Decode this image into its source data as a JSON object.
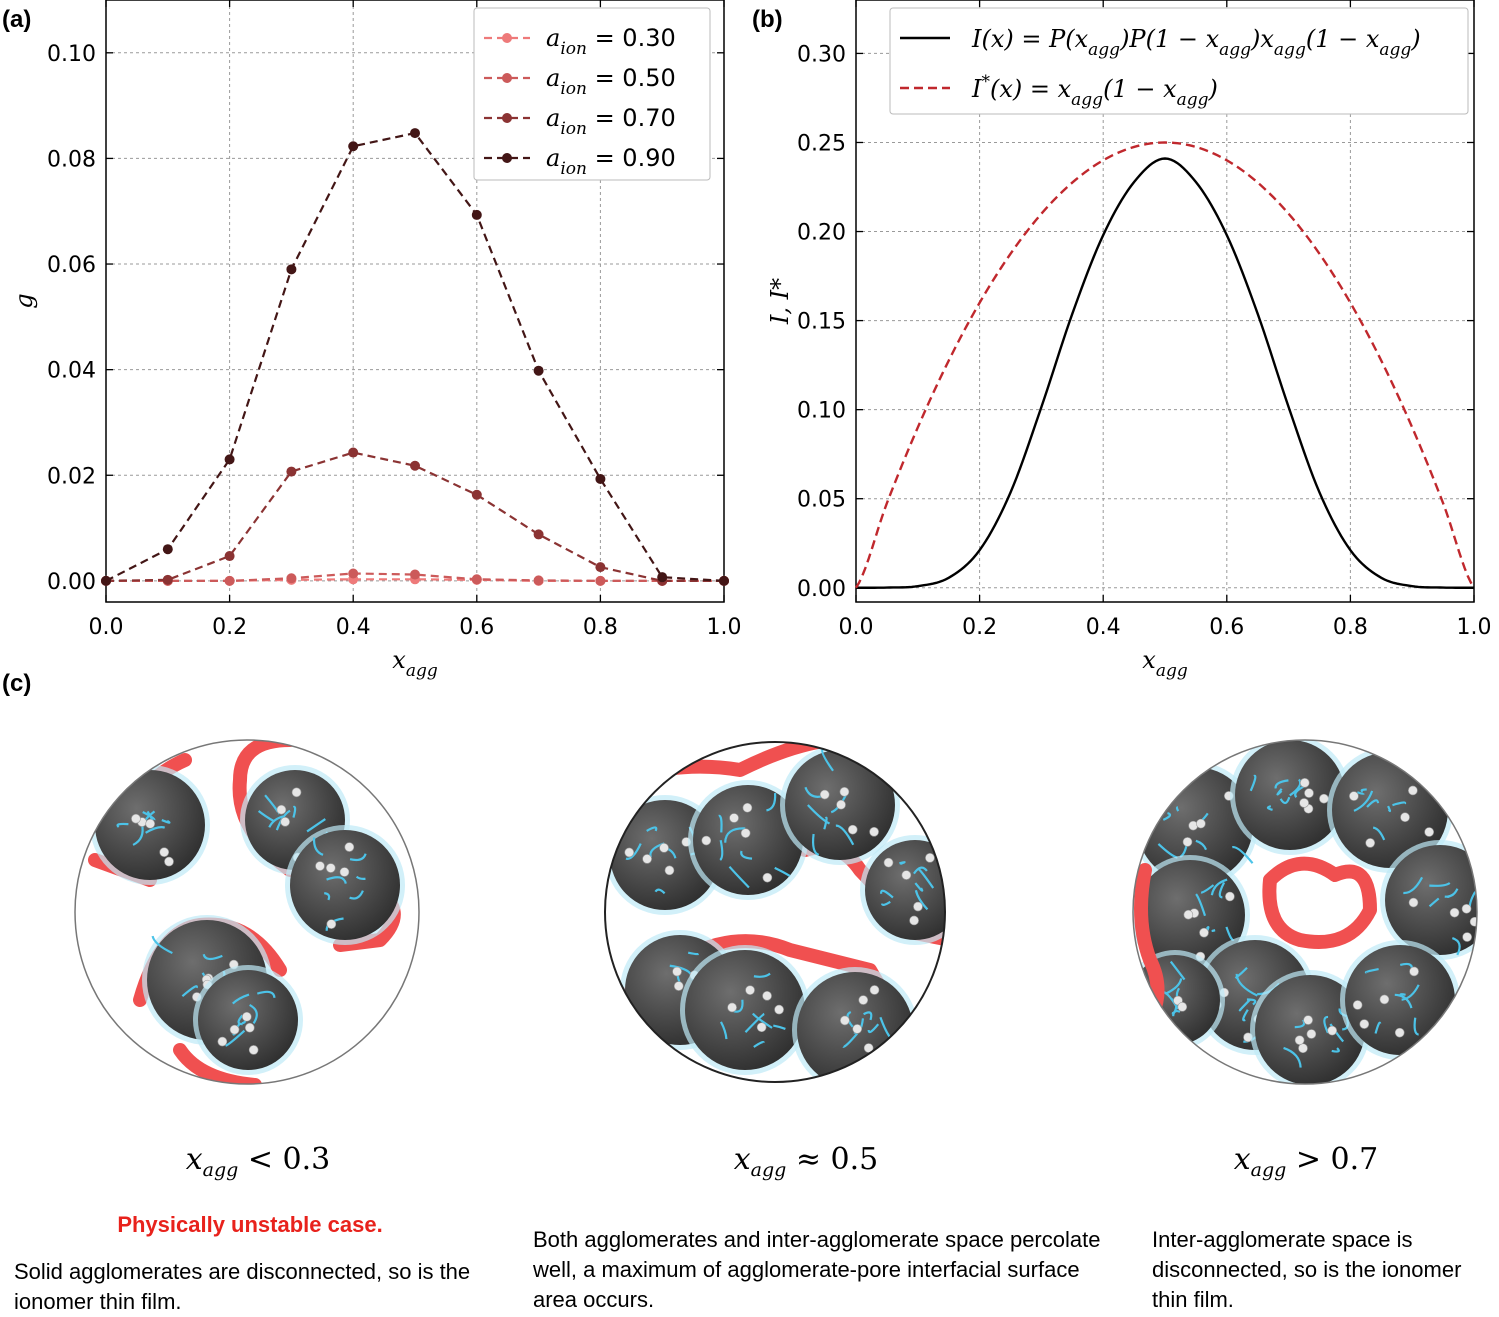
{
  "panels": {
    "a": "(a)",
    "b": "(b)",
    "c": "(c)"
  },
  "chart_data": [
    {
      "type": "line",
      "panel": "(a)",
      "xlabel": "x",
      "xlabel_sub": "agg",
      "ylabel": "g",
      "xlim": [
        0.0,
        1.0
      ],
      "ylim": [
        -0.004,
        0.11
      ],
      "xticks": [
        "0.0",
        "0.2",
        "0.4",
        "0.6",
        "0.8",
        "1.0"
      ],
      "xtick_values": [
        0.0,
        0.2,
        0.4,
        0.6,
        0.8,
        1.0
      ],
      "yticks": [
        "0.00",
        "0.02",
        "0.04",
        "0.06",
        "0.08",
        "0.10"
      ],
      "ytick_values": [
        0.0,
        0.02,
        0.04,
        0.06,
        0.08,
        0.1
      ],
      "grid": true,
      "legend_placement": "top-right",
      "x": [
        0.0,
        0.1,
        0.2,
        0.3,
        0.4,
        0.5,
        0.6,
        0.7,
        0.8,
        0.9,
        1.0
      ],
      "series": [
        {
          "name_sym": "a",
          "name_sub": "ion",
          "name_val": " = 0.30",
          "color": "#ee7a7a",
          "values": [
            0.0,
            0.0,
            0.0,
            0.0002,
            0.0003,
            0.0003,
            0.0002,
            0.0,
            0.0,
            0.0,
            0.0
          ]
        },
        {
          "name_sym": "a",
          "name_sub": "ion",
          "name_val": " = 0.50",
          "color": "#cc5a5a",
          "values": [
            0.0,
            0.0,
            0.0,
            0.0005,
            0.0014,
            0.0012,
            0.0003,
            0.0001,
            0.0,
            0.0,
            0.0
          ]
        },
        {
          "name_sym": "a",
          "name_sub": "ion",
          "name_val": " = 0.70",
          "color": "#8b3333",
          "values": [
            0.0,
            0.0002,
            0.0047,
            0.0207,
            0.0243,
            0.0218,
            0.0163,
            0.0088,
            0.0026,
            0.0,
            0.0
          ]
        },
        {
          "name_sym": "a",
          "name_sub": "ion",
          "name_val": " = 0.90",
          "color": "#431616",
          "values": [
            0.0,
            0.006,
            0.023,
            0.059,
            0.0823,
            0.0848,
            0.0693,
            0.0398,
            0.0193,
            0.0007,
            0.0
          ]
        }
      ]
    },
    {
      "type": "line",
      "panel": "(b)",
      "xlabel": "x",
      "xlabel_sub": "agg",
      "ylabel": "I, I*",
      "xlim": [
        0.0,
        1.0
      ],
      "ylim": [
        -0.008,
        0.33
      ],
      "xticks": [
        "0.0",
        "0.2",
        "0.4",
        "0.6",
        "0.8",
        "1.0"
      ],
      "xtick_values": [
        0.0,
        0.2,
        0.4,
        0.6,
        0.8,
        1.0
      ],
      "yticks": [
        "0.00",
        "0.05",
        "0.10",
        "0.15",
        "0.20",
        "0.25",
        "0.30"
      ],
      "ytick_values": [
        0.0,
        0.05,
        0.1,
        0.15,
        0.2,
        0.25,
        0.3
      ],
      "grid": true,
      "legend_placement": "top",
      "x": [
        0.0,
        0.05,
        0.1,
        0.15,
        0.2,
        0.25,
        0.3,
        0.35,
        0.4,
        0.45,
        0.5,
        0.55,
        0.6,
        0.65,
        0.7,
        0.75,
        0.8,
        0.85,
        0.9,
        0.95,
        1.0
      ],
      "series": [
        {
          "name": "I(x)   = P(x_agg)P(1 − x_agg)x_agg(1 − x_agg)",
          "color": "#000000",
          "style": "solid",
          "values": [
            0.0,
            0.0001,
            0.0009,
            0.0056,
            0.0211,
            0.0535,
            0.1015,
            0.1538,
            0.198,
            0.2278,
            0.241,
            0.2278,
            0.198,
            0.1538,
            0.1015,
            0.0535,
            0.0211,
            0.0056,
            0.0009,
            0.0001,
            0.0
          ]
        },
        {
          "name": "I*(x) = x_agg(1 − x_agg)",
          "color": "#c0282d",
          "style": "dashed",
          "values": [
            0.0,
            0.0475,
            0.09,
            0.1275,
            0.16,
            0.1875,
            0.21,
            0.2275,
            0.24,
            0.2475,
            0.25,
            0.2475,
            0.24,
            0.2275,
            0.21,
            0.1875,
            0.16,
            0.1275,
            0.09,
            0.0475,
            0.0
          ]
        }
      ]
    }
  ],
  "legend_b": {
    "row1_lhs": "I(x)",
    "row1_rhs": "= P(x",
    "row2_lhs": "I",
    "row2_rhs": "(x) = x"
  },
  "cases": [
    {
      "sym": "x",
      "sub": "agg",
      "rel": " < 0.3",
      "highlight": "Physically unstable case.",
      "text": "Solid agglomerates are disconnected, so is the ionomer thin film."
    },
    {
      "sym": "x",
      "sub": "agg",
      "rel": " ≈ 0.5",
      "highlight": "",
      "text": "Both agglomerates and inter-agglomerate space percolate well, a maximum of agglomerate-pore interfacial surface area occurs."
    },
    {
      "sym": "x",
      "sub": "agg",
      "rel": " > 0.7",
      "highlight": "",
      "text": "Inter-agglomerate space is disconnected, so is the ionomer thin film."
    }
  ],
  "colors": {
    "agglomerate": "#3d3d3d",
    "ionomer_film": "#f05050",
    "water_channels": "#4cc3e8",
    "particles": "#e6e6e6"
  }
}
